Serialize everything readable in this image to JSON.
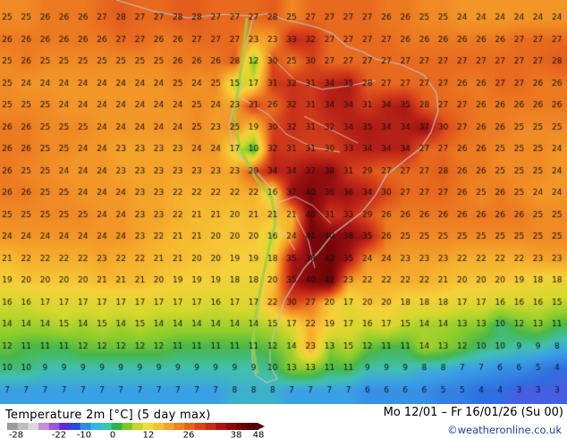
{
  "title": "Temperature 2m [°C] (5 day max)",
  "date_range": "Mo 12/01 – Fr 16/01/26 (Su 00)",
  "credit": "©weatheronline.co.uk",
  "legend": {
    "ticks": [
      "-28",
      "-22",
      "-10",
      "0",
      "12",
      "26",
      "38",
      "48"
    ],
    "swatches": [
      "#9a9a9a",
      "#bdbdbd",
      "#d9d9d9",
      "#c48fd8",
      "#9b59d0",
      "#5b2bd8",
      "#2a49e0",
      "#2f8ae8",
      "#36b6e6",
      "#35c9a9",
      "#2fb44a",
      "#7cc92a",
      "#c6d62a",
      "#f0dc3a",
      "#f6c233",
      "#f2a22c",
      "#ee8324",
      "#e5631e",
      "#d9421a",
      "#c52a17",
      "#a81411",
      "#8c0a0a",
      "#6d0505",
      "#4f0303"
    ]
  },
  "grid_values": {
    "row_01": "25 25 26 26 26 27 28 27 27 28 28 27 27 27 28 25 27 27 27 27 26 26 25 25 24 24 24 24 24 24",
    "row_02": "26 26 26 26 26 26 27 27 26 26 27 27 27 23 23 33 32 27 27 27 27 26 26 26 26 26 26 27 27 27",
    "row_03": "25 26 25 25 25 25 25 25 25 26 26 26 28 12 30 25 30 27 27 27 27 27 27 27 27 27 27 27 27 28",
    "row_04": "25 24 24 24 24 24 24 24 24 25 24 25 15 17 31 32 31 34 35 28 27 27 27 27 26 26 27 27 26 26",
    "row_05": "25 25 25 24 24 24 24 24 24 24 25 24 23 31 26 32 31 34 34 31 34 35 28 27 27 26 26 26 26 26",
    "row_06": "26 26 25 25 25 24 24 24 24 24 25 23 25 19 30 32 31 32 34 35 34 34 37 30 27 26 26 25 25 25",
    "row_07": "26 26 25 25 24 24 23 23 23 23 24 24 17 10 32 31 31 30 33 34 34 34 27 27 26 26 25 25 25 24",
    "row_08": "26 25 25 24 24 24 23 23 23 23 23 23 23 29 34 34 37 38 31 29 27 27 27 28 26 26 25 25 25 24",
    "row_09": "26 26 25 25 24 24 24 23 23 22 22 22 22 22 16 37 40 36 36 34 30 27 27 27 26 25 26 25 24 24",
    "row_10": "25 25 25 25 25 24 24 23 23 22 21 21 20 21 21 21 40 31 33 29 26 26 26 26 26 26 26 26 25 25",
    "row_11": "24 24 24 24 24 24 24 23 22 21 21 20 20 20 16 24 41 40 38 35 26 25 25 25 25 25 25 25 25 25",
    "row_12": "21 22 22 22 22 23 22 22 21 21 20 20 19 19 18 35 38 42 35 24 24 23 23 23 22 22 22 22 23 23",
    "row_13": "19 20 20 20 20 21 21 21 20 19 19 19 18 18 20 35 40 42 23 22 22 22 22 21 20 20 20 19 18 18",
    "row_14": "16 16 17 17 17 17 17 17 17 17 17 16 17 17 22 30 27 20 17 20 20 18 18 18 17 17 16 16 16 15",
    "row_15": "14 14 14 15 14 15 14 15 14 14 14 14 14 14 15 17 22 19 17 16 17 15 14 14 13 13 10 12 13 11",
    "row_16": "12 11 11 11 12 12 12 12 12 11 11 11 11 11 12 14 23 13 15 12 11 11 14 13 12 10 10 9 9 8",
    "row_17": "10 10 9 9 9 9 9 9 9 9 9 9 9 9 10 13 13 11 11 9 9 9 8 8 7 7 6 6 5 4",
    "row_18": "7 7 7 7 7 7 7 7 7 7 7 7 8 8 8 7 7 7 7 6 6 6 6 5 5 4 4 3 3 3"
  }
}
